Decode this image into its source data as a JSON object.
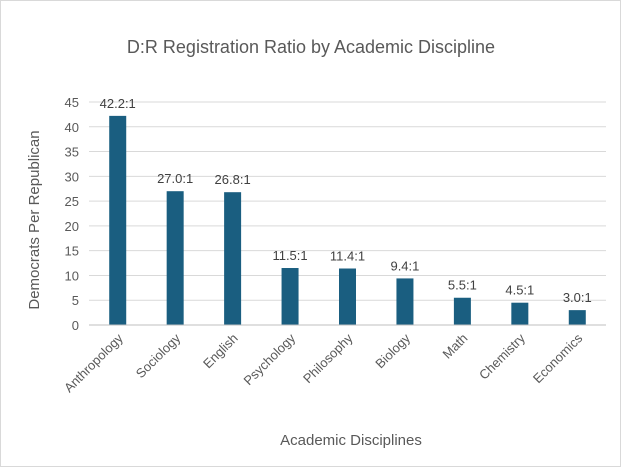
{
  "chart_data": {
    "type": "bar",
    "title": "D:R Registration Ratio by Academic Discipline",
    "xlabel": "Academic Disciplines",
    "ylabel": "Democrats Per Republican",
    "categories": [
      "Anthropology",
      "Sociology",
      "English",
      "Psychology",
      "Philosophy",
      "Biology",
      "Math",
      "Chemistry",
      "Economics"
    ],
    "values": [
      42.2,
      27.0,
      26.8,
      11.5,
      11.4,
      9.4,
      5.5,
      4.5,
      3.0
    ],
    "data_labels": [
      "42.2:1",
      "27.0:1",
      "26.8:1",
      "11.5:1",
      "11.4:1",
      "9.4:1",
      "5.5:1",
      "4.5:1",
      "3.0:1"
    ],
    "ylim": [
      0,
      45
    ],
    "yticks": [
      0,
      5,
      10,
      15,
      20,
      25,
      30,
      35,
      40,
      45
    ],
    "grid": true,
    "bar_color": "#1a5e80"
  }
}
